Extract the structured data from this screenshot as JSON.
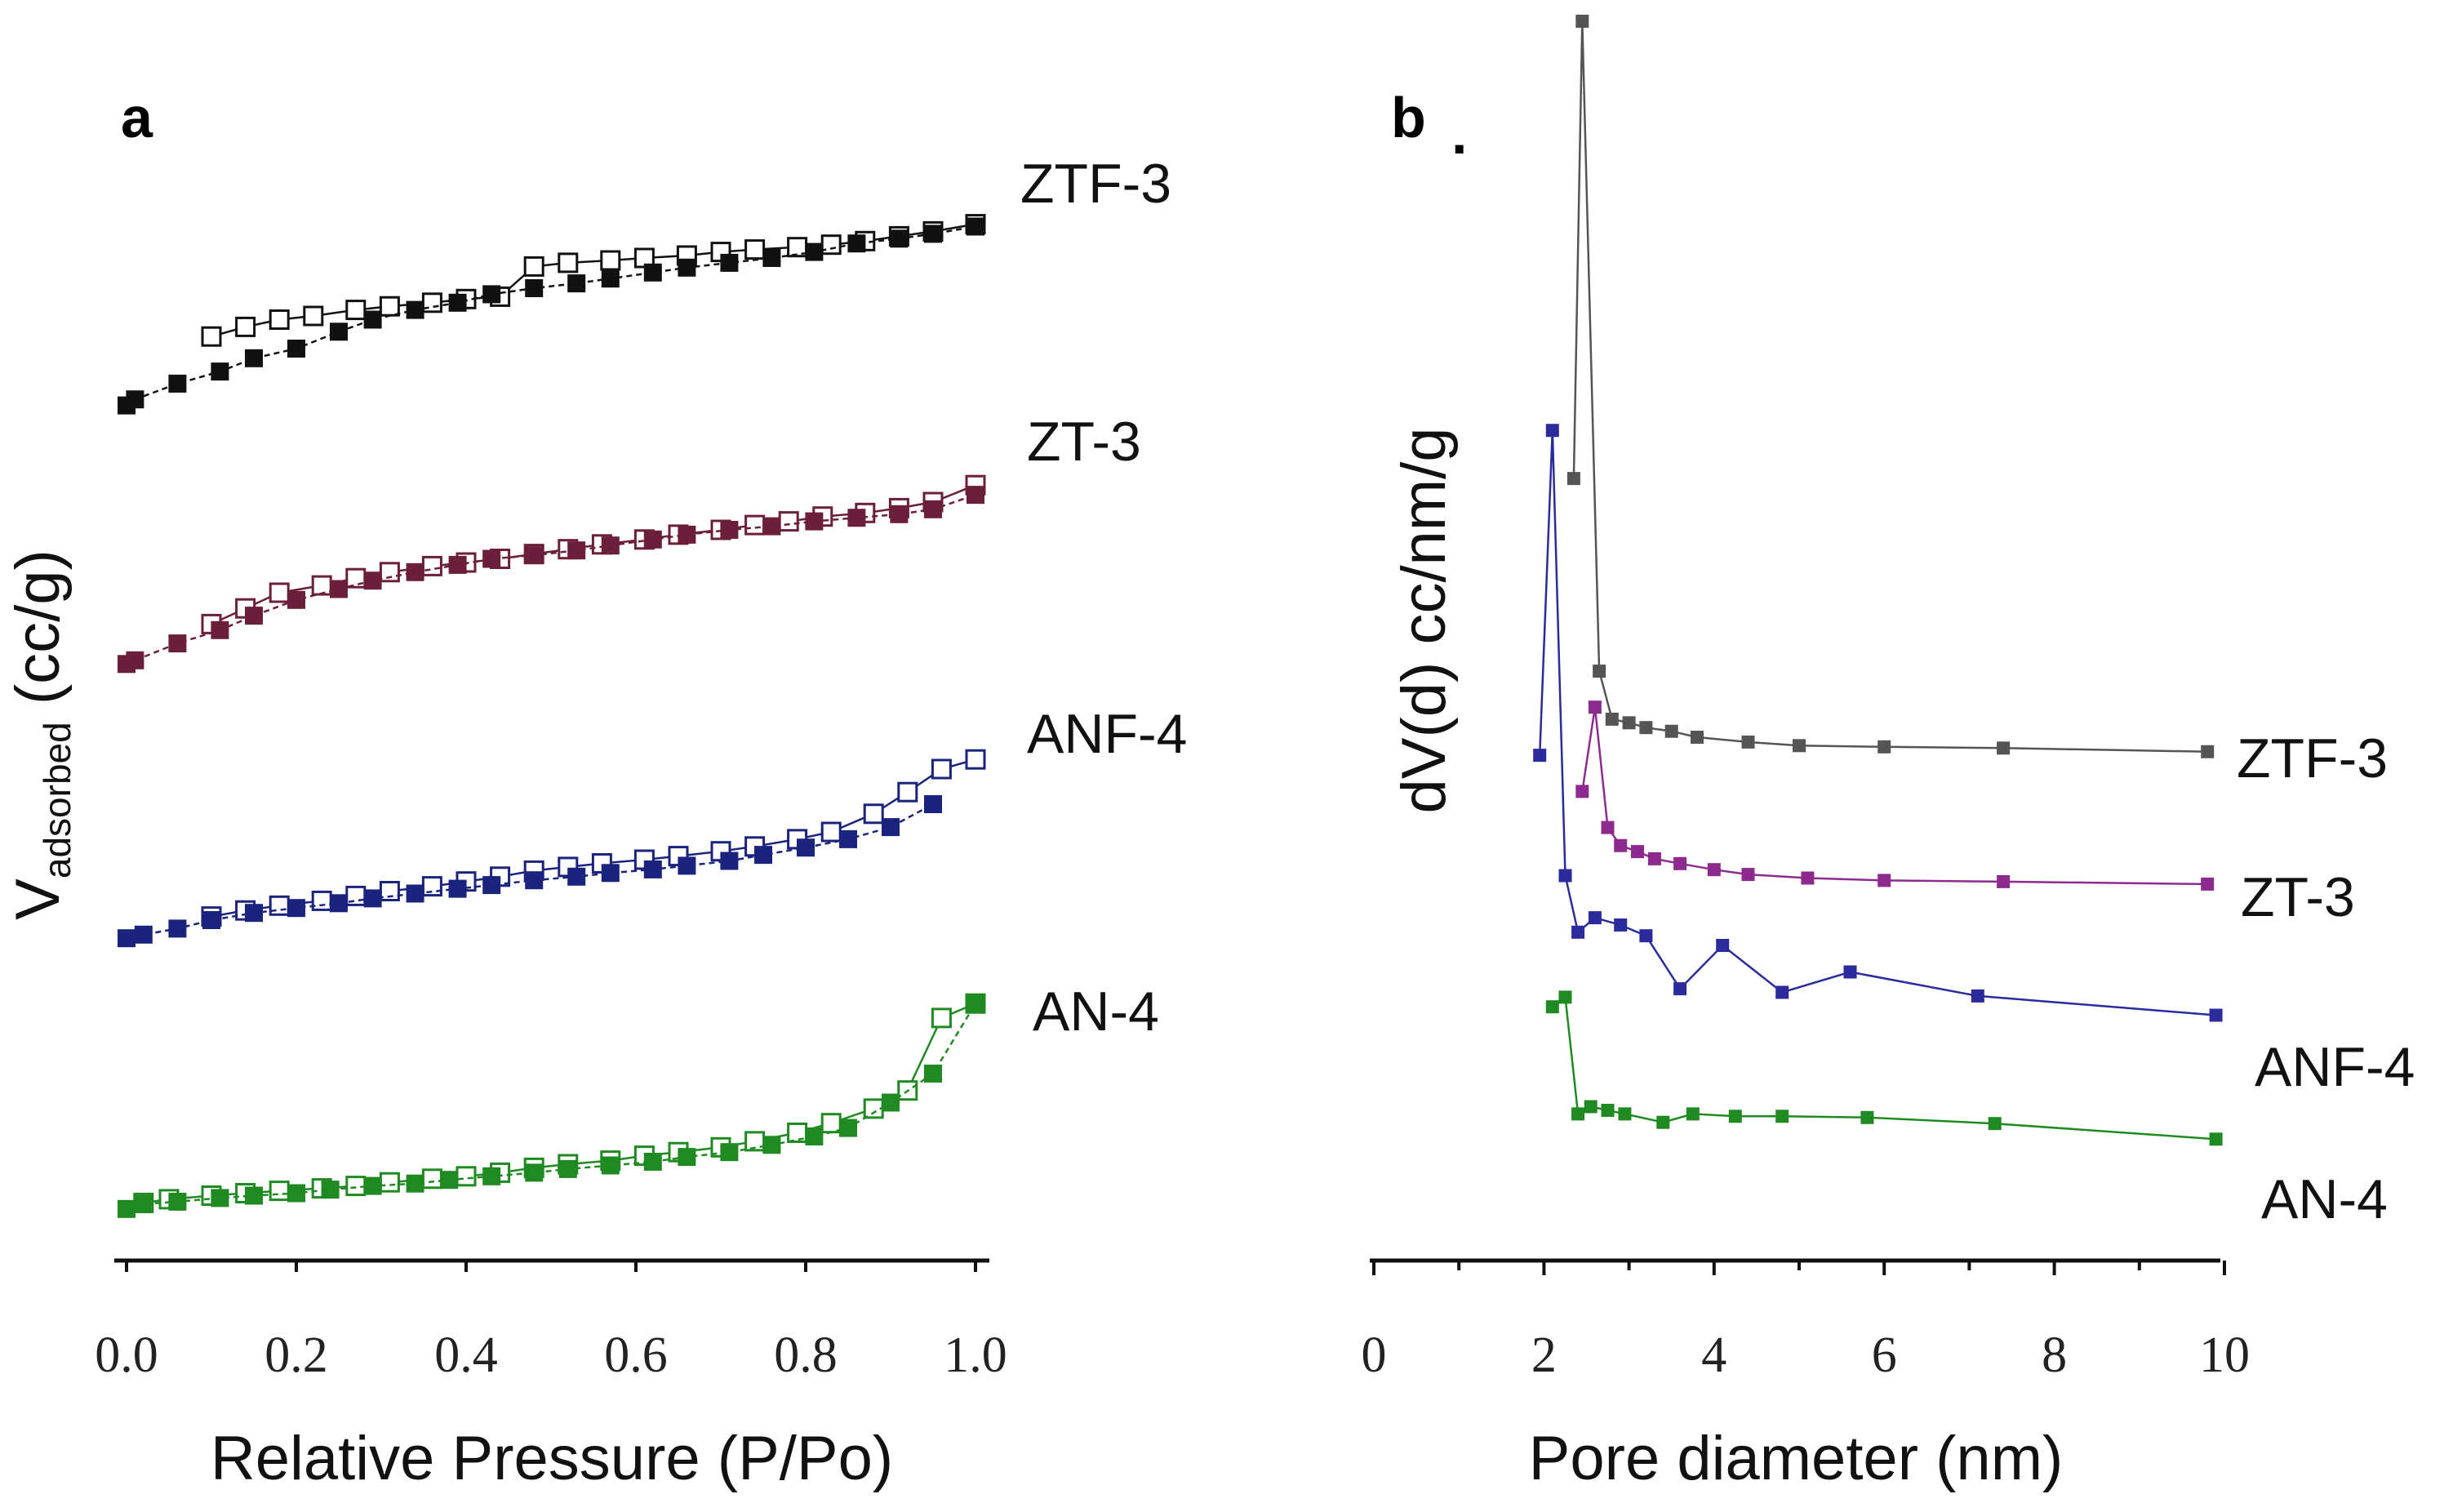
{
  "chart_data": [
    {
      "type": "scatter",
      "panel": "a",
      "title": "",
      "xlabel": "Relative Pressure (P/Po)",
      "ylabel_main": "V",
      "ylabel_sub": "adsorbed",
      "ylabel_unit": " (cc/g)",
      "xlim": [
        0,
        1
      ],
      "ylim": [
        0,
        100
      ],
      "xticks": [
        "0.0",
        "0.2",
        "0.4",
        "0.6",
        "0.8",
        "1.0"
      ],
      "series": [
        {
          "name": "ZTF-3",
          "color": "#111111",
          "adsorption": {
            "x": [
              0,
              0.01,
              0.06,
              0.11,
              0.15,
              0.2,
              0.25,
              0.29,
              0.34,
              0.39,
              0.43,
              0.48,
              0.53,
              0.57,
              0.62,
              0.66,
              0.71,
              0.76,
              0.81,
              0.86,
              0.91,
              0.95,
              1.0
            ],
            "y": [
              67.8,
              68.3,
              69.6,
              70.6,
              71.7,
              72.5,
              73.9,
              74.9,
              75.7,
              76.3,
              77.0,
              77.5,
              77.9,
              78.3,
              78.8,
              79.2,
              79.6,
              80.0,
              80.5,
              81.2,
              81.6,
              82.0,
              82.6
            ]
          },
          "desorption": {
            "x": [
              0.1,
              0.14,
              0.18,
              0.22,
              0.27,
              0.31,
              0.36,
              0.4,
              0.44,
              0.48,
              0.52,
              0.57,
              0.61,
              0.66,
              0.7,
              0.74,
              0.79,
              0.83,
              0.87,
              0.91,
              0.95,
              1.0
            ],
            "y": [
              73.5,
              74.3,
              74.9,
              75.2,
              75.7,
              76.0,
              76.3,
              76.6,
              76.8,
              79.3,
              79.6,
              79.8,
              80.0,
              80.2,
              80.5,
              80.7,
              80.9,
              81.1,
              81.4,
              81.8,
              82.2,
              82.8
            ]
          }
        },
        {
          "name": "ZT-3",
          "color": "#6b1f3a",
          "adsorption": {
            "x": [
              0,
              0.01,
              0.06,
              0.11,
              0.15,
              0.2,
              0.25,
              0.29,
              0.34,
              0.39,
              0.43,
              0.48,
              0.53,
              0.57,
              0.62,
              0.66,
              0.71,
              0.76,
              0.81,
              0.86,
              0.91,
              0.95,
              1.0
            ],
            "y": [
              46.4,
              46.7,
              48.1,
              49.2,
              50.4,
              51.7,
              52.6,
              53.3,
              54.0,
              54.6,
              55.1,
              55.4,
              55.8,
              56.2,
              56.7,
              57.1,
              57.5,
              57.8,
              58.2,
              58.5,
              58.8,
              59.2,
              60.4
            ]
          },
          "desorption": {
            "x": [
              0.1,
              0.14,
              0.18,
              0.23,
              0.27,
              0.31,
              0.36,
              0.4,
              0.44,
              0.48,
              0.52,
              0.56,
              0.61,
              0.65,
              0.7,
              0.74,
              0.78,
              0.82,
              0.87,
              0.91,
              0.95,
              1.0
            ],
            "y": [
              49.7,
              51.0,
              52.3,
              52.9,
              53.5,
              54.0,
              54.5,
              54.8,
              55.1,
              55.5,
              55.9,
              56.3,
              56.7,
              57.1,
              57.5,
              57.9,
              58.2,
              58.6,
              58.9,
              59.3,
              59.8,
              61.2
            ]
          }
        },
        {
          "name": "ANF-4",
          "color": "#1a237e",
          "adsorption": {
            "x": [
              0,
              0.02,
              0.06,
              0.1,
              0.15,
              0.2,
              0.25,
              0.29,
              0.34,
              0.39,
              0.43,
              0.48,
              0.53,
              0.57,
              0.62,
              0.66,
              0.71,
              0.75,
              0.8,
              0.85,
              0.9,
              0.95
            ],
            "y": [
              23.7,
              24.0,
              24.5,
              25.2,
              25.8,
              26.2,
              26.6,
              27.0,
              27.4,
              27.8,
              28.1,
              28.5,
              28.8,
              29.1,
              29.4,
              29.7,
              30.1,
              30.6,
              31.2,
              31.9,
              32.9,
              34.8
            ]
          },
          "desorption": {
            "x": [
              0.1,
              0.14,
              0.18,
              0.23,
              0.27,
              0.31,
              0.36,
              0.4,
              0.44,
              0.48,
              0.52,
              0.56,
              0.61,
              0.65,
              0.7,
              0.74,
              0.79,
              0.83,
              0.88,
              0.92,
              0.96,
              1.0
            ],
            "y": [
              25.5,
              26.0,
              26.4,
              26.8,
              27.2,
              27.6,
              28.0,
              28.4,
              28.8,
              29.3,
              29.6,
              29.9,
              30.2,
              30.5,
              30.9,
              31.3,
              31.9,
              32.5,
              34.0,
              35.8,
              37.7,
              38.5
            ]
          }
        },
        {
          "name": "AN-4",
          "color": "#1f8a22",
          "adsorption": {
            "x": [
              0,
              0.02,
              0.06,
              0.11,
              0.15,
              0.2,
              0.24,
              0.29,
              0.34,
              0.38,
              0.43,
              0.48,
              0.52,
              0.57,
              0.62,
              0.66,
              0.71,
              0.76,
              0.81,
              0.85,
              0.9,
              0.95,
              1.0
            ],
            "y": [
              1.3,
              1.7,
              1.9,
              2.2,
              2.4,
              2.6,
              2.9,
              3.2,
              3.4,
              3.7,
              4.0,
              4.3,
              4.6,
              4.9,
              5.2,
              5.6,
              6.0,
              6.6,
              7.3,
              8.0,
              10.1,
              12.5,
              18.3
            ]
          },
          "desorption": {
            "x": [
              0.02,
              0.05,
              0.1,
              0.14,
              0.18,
              0.23,
              0.27,
              0.31,
              0.36,
              0.4,
              0.44,
              0.48,
              0.52,
              0.57,
              0.61,
              0.65,
              0.7,
              0.74,
              0.79,
              0.83,
              0.88,
              0.92,
              0.96,
              1.0
            ],
            "y": [
              1.8,
              2.1,
              2.4,
              2.6,
              2.8,
              3.0,
              3.2,
              3.5,
              3.8,
              4.0,
              4.3,
              4.7,
              5.0,
              5.3,
              5.7,
              6.0,
              6.4,
              6.9,
              7.6,
              8.4,
              9.6,
              11.1,
              17.1,
              18.3
            ]
          }
        }
      ]
    },
    {
      "type": "line",
      "panel": "b",
      "title": "",
      "xlabel": "Pore diameter (nm)",
      "ylabel": "dV(d) cc/nm/g",
      "xlim": [
        0,
        10
      ],
      "ylim": [
        0,
        100
      ],
      "xticks": [
        "0",
        "2",
        "4",
        "6",
        "8",
        "10"
      ],
      "panel_mark": ".",
      "series": [
        {
          "name": "ZTF-3",
          "color": "#555555",
          "x": [
            2.35,
            2.45,
            2.65,
            2.8,
            3.0,
            3.2,
            3.5,
            3.8,
            4.4,
            5.0,
            6.0,
            7.4,
            9.8
          ],
          "y": [
            62,
            100,
            46,
            42,
            41.7,
            41.3,
            41,
            40.5,
            40.1,
            39.8,
            39.7,
            39.6,
            39.3
          ]
        },
        {
          "name": "ZT-3",
          "color": "#8e2a8e",
          "x": [
            2.45,
            2.6,
            2.75,
            2.9,
            3.1,
            3.3,
            3.6,
            4.0,
            4.4,
            5.1,
            6.0,
            7.4,
            9.8
          ],
          "y": [
            36,
            43,
            33,
            31.5,
            31,
            30.4,
            30,
            29.5,
            29.1,
            28.8,
            28.6,
            28.5,
            28.3
          ]
        },
        {
          "name": "ANF-4",
          "color": "#2b2b9e",
          "x": [
            1.95,
            2.1,
            2.25,
            2.4,
            2.6,
            2.9,
            3.2,
            3.6,
            4.1,
            4.8,
            5.6,
            7.1,
            9.9
          ],
          "y": [
            39,
            66,
            29,
            24.3,
            25.5,
            24.9,
            24.0,
            19.6,
            23.2,
            19.3,
            21.0,
            19.0,
            17.4
          ]
        },
        {
          "name": "AN-4",
          "color": "#1f8a22",
          "x": [
            2.1,
            2.25,
            2.4,
            2.55,
            2.75,
            2.95,
            3.4,
            3.75,
            4.25,
            4.8,
            5.8,
            7.3,
            9.9
          ],
          "y": [
            18.1,
            18.9,
            9.2,
            9.8,
            9.5,
            9.2,
            8.5,
            9.2,
            9.0,
            9.0,
            8.9,
            8.4,
            7.1
          ]
        }
      ]
    }
  ]
}
